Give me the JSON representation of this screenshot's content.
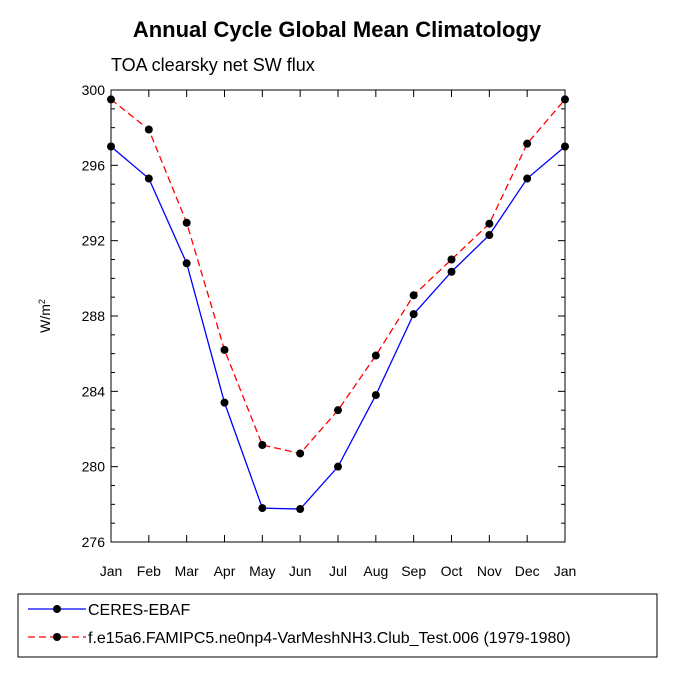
{
  "chart_data": {
    "type": "line",
    "title": "Annual Cycle Global Mean Climatology",
    "subtitle": "TOA clearsky net SW flux",
    "ylabel": "W/m",
    "ylabel_sup": "2",
    "categories": [
      "Jan",
      "Feb",
      "Mar",
      "Apr",
      "May",
      "Jun",
      "Jul",
      "Aug",
      "Sep",
      "Oct",
      "Nov",
      "Dec",
      "Jan"
    ],
    "ylim": [
      276,
      300
    ],
    "yticks": [
      276,
      280,
      284,
      288,
      292,
      296,
      300
    ],
    "grid": false,
    "legend_position": "bottom",
    "series": [
      {
        "name": "CERES-EBAF",
        "color": "#0000ff",
        "dash": "solid",
        "marker": "circle",
        "values": [
          297.0,
          295.3,
          290.8,
          283.4,
          277.8,
          277.75,
          280.0,
          283.8,
          288.1,
          290.35,
          292.3,
          295.3,
          297.0
        ]
      },
      {
        "name": "f.e15a6.FAMIPC5.ne0np4-VarMeshNH3.Club_Test.006 (1979-1980)",
        "color": "#ff0000",
        "dash": "dashed",
        "marker": "circle",
        "values": [
          299.5,
          297.9,
          292.95,
          286.2,
          281.15,
          280.7,
          283.0,
          285.9,
          289.1,
          291.0,
          292.9,
          297.15,
          299.5
        ]
      }
    ]
  }
}
